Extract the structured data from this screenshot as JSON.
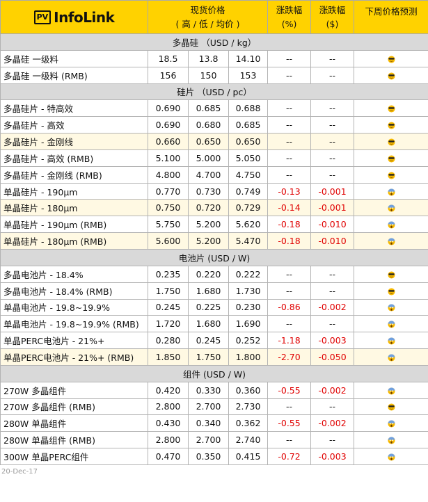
{
  "header": {
    "logo_pv": "PV",
    "logo_name": "InfoLink",
    "price": "现货价格",
    "price_sub": "( 高 / 低 / 均价 )",
    "chg_pct": "涨跌幅",
    "chg_pct_unit": "(%)",
    "chg_usd": "涨跌幅",
    "chg_usd_unit": "($)",
    "forecast": "下周价格预测"
  },
  "colors": {
    "header_bg": "#ffd200",
    "section_bg": "#d9d9d9",
    "highlight_bg": "#fff9e3",
    "negative": "#e00000"
  },
  "sections": [
    {
      "title": "多晶硅 （USD / kg）",
      "rows": [
        {
          "name": "多晶硅 一级料",
          "high": "18.5",
          "low": "13.8",
          "avg": "14.10",
          "pct": "--",
          "usd": "--",
          "icon": "sunglasses-face-icon"
        },
        {
          "name": "多晶硅 一级料 (RMB)",
          "high": "156",
          "low": "150",
          "avg": "153",
          "pct": "--",
          "usd": "--",
          "icon": "sunglasses-face-icon"
        }
      ]
    },
    {
      "title": "硅片 （USD / pc）",
      "rows": [
        {
          "name": "多晶硅片 - 特高效",
          "high": "0.690",
          "low": "0.685",
          "avg": "0.688",
          "pct": "--",
          "usd": "--",
          "icon": "sunglasses-face-icon"
        },
        {
          "name": "多晶硅片 - 高效",
          "high": "0.690",
          "low": "0.680",
          "avg": "0.685",
          "pct": "--",
          "usd": "--",
          "icon": "sunglasses-face-icon"
        },
        {
          "name": "多晶硅片 - 金刚线",
          "high": "0.660",
          "low": "0.650",
          "avg": "0.650",
          "pct": "--",
          "usd": "--",
          "icon": "sunglasses-face-icon",
          "hl": true
        },
        {
          "name": "多晶硅片 - 高效 (RMB)",
          "high": "5.100",
          "low": "5.000",
          "avg": "5.050",
          "pct": "--",
          "usd": "--",
          "icon": "sunglasses-face-icon"
        },
        {
          "name": "多晶硅片 - 金刚线 (RMB)",
          "high": "4.800",
          "low": "4.700",
          "avg": "4.750",
          "pct": "--",
          "usd": "--",
          "icon": "sunglasses-face-icon"
        },
        {
          "name": "单晶硅片 - 190μm",
          "high": "0.770",
          "low": "0.730",
          "avg": "0.749",
          "pct": "-0.13",
          "usd": "-0.001",
          "icon": "scream-face-icon"
        },
        {
          "name": "单晶硅片 - 180μm",
          "high": "0.750",
          "low": "0.720",
          "avg": "0.729",
          "pct": "-0.14",
          "usd": "-0.001",
          "icon": "scream-face-icon",
          "hl": true
        },
        {
          "name": "单晶硅片 - 190μm (RMB)",
          "high": "5.750",
          "low": "5.200",
          "avg": "5.620",
          "pct": "-0.18",
          "usd": "-0.010",
          "icon": "scream-face-icon"
        },
        {
          "name": "单晶硅片 - 180μm (RMB)",
          "high": "5.600",
          "low": "5.200",
          "avg": "5.470",
          "pct": "-0.18",
          "usd": "-0.010",
          "icon": "scream-face-icon",
          "hl": true
        }
      ]
    },
    {
      "title": "电池片 (USD / W)",
      "rows": [
        {
          "name": "多晶电池片 - 18.4%",
          "high": "0.235",
          "low": "0.220",
          "avg": "0.222",
          "pct": "--",
          "usd": "--",
          "icon": "sunglasses-face-icon"
        },
        {
          "name": "多晶电池片 - 18.4% (RMB)",
          "high": "1.750",
          "low": "1.680",
          "avg": "1.730",
          "pct": "--",
          "usd": "--",
          "icon": "sunglasses-face-icon"
        },
        {
          "name": "单晶电池片 - 19.8~19.9%",
          "high": "0.245",
          "low": "0.225",
          "avg": "0.230",
          "pct": "-0.86",
          "usd": "-0.002",
          "icon": "scream-face-icon"
        },
        {
          "name": "单晶电池片 - 19.8~19.9% (RMB)",
          "high": "1.720",
          "low": "1.680",
          "avg": "1.690",
          "pct": "--",
          "usd": "--",
          "icon": "scream-face-icon"
        },
        {
          "name": "单晶PERC电池片 - 21%+",
          "high": "0.280",
          "low": "0.245",
          "avg": "0.252",
          "pct": "-1.18",
          "usd": "-0.003",
          "icon": "scream-face-icon"
        },
        {
          "name": "单晶PERC电池片 - 21%+ (RMB)",
          "high": "1.850",
          "low": "1.750",
          "avg": "1.800",
          "pct": "-2.70",
          "usd": "-0.050",
          "icon": "scream-face-icon",
          "hl": true
        }
      ]
    },
    {
      "title": "组件 (USD / W)",
      "rows": [
        {
          "name": "270W 多晶组件",
          "high": "0.420",
          "low": "0.330",
          "avg": "0.360",
          "pct": "-0.55",
          "usd": "-0.002",
          "icon": "scream-face-icon"
        },
        {
          "name": "270W 多晶组件 (RMB)",
          "high": "2.800",
          "low": "2.700",
          "avg": "2.730",
          "pct": "--",
          "usd": "--",
          "icon": "sunglasses-face-icon"
        },
        {
          "name": "280W 单晶组件",
          "high": "0.430",
          "low": "0.340",
          "avg": "0.362",
          "pct": "-0.55",
          "usd": "-0.002",
          "icon": "scream-face-icon"
        },
        {
          "name": "280W 单晶组件 (RMB)",
          "high": "2.800",
          "low": "2.700",
          "avg": "2.740",
          "pct": "--",
          "usd": "--",
          "icon": "scream-face-icon"
        },
        {
          "name": "300W 单晶PERC组件",
          "high": "0.470",
          "low": "0.350",
          "avg": "0.415",
          "pct": "-0.72",
          "usd": "-0.003",
          "icon": "scream-face-icon"
        }
      ]
    }
  ],
  "footer": {
    "date": "20-Dec-17"
  }
}
